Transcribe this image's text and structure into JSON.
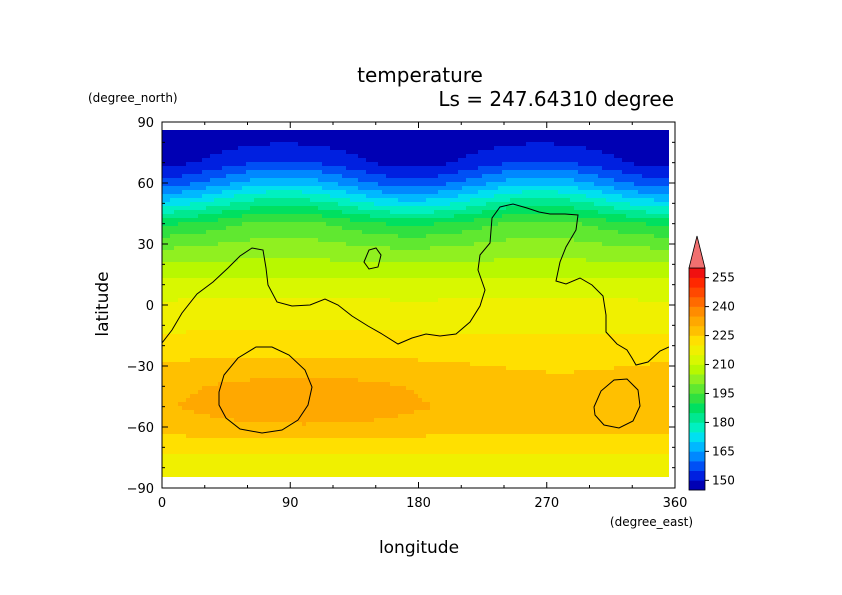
{
  "chart_data": {
    "type": "heatmap",
    "title": "temperature",
    "subtitle": "Ls = 247.64310 degree",
    "xlabel": "longitude",
    "ylabel": "latitude",
    "x_units": "(degree_east)",
    "y_units": "(degree_north)",
    "xlim": [
      0,
      360
    ],
    "ylim": [
      -90,
      90
    ],
    "xticks": [
      "0",
      "90",
      "180",
      "270",
      "360"
    ],
    "yticks": [
      "90",
      "60",
      "30",
      "0",
      "−30",
      "−60",
      "−90"
    ],
    "colorbar": {
      "levels": [
        145,
        150,
        155,
        160,
        165,
        170,
        175,
        180,
        185,
        190,
        195,
        200,
        205,
        210,
        215,
        220,
        225,
        230,
        235,
        240,
        245,
        250,
        255,
        260
      ],
      "tick_labels": [
        "150",
        "165",
        "180",
        "195",
        "210",
        "225",
        "240",
        "255"
      ],
      "tick_values": [
        150,
        165,
        180,
        195,
        210,
        225,
        240,
        255
      ],
      "colors": [
        "#0000b4",
        "#0020e0",
        "#0050f5",
        "#0088ff",
        "#00b8ff",
        "#00e0f0",
        "#00f0c0",
        "#00e890",
        "#00e060",
        "#30e040",
        "#60e830",
        "#90f020",
        "#b8f800",
        "#d8f800",
        "#f0f000",
        "#ffe000",
        "#ffc000",
        "#ffa800",
        "#ff8c00",
        "#ff6a00",
        "#ff4800",
        "#ff2800",
        "#f01010"
      ],
      "extend": "max",
      "over_color": "#f07070"
    },
    "zonal_profile": {
      "lat": [
        -90,
        -80,
        -70,
        -60,
        -50,
        -40,
        -30,
        -20,
        -10,
        0,
        10,
        20,
        30,
        40,
        50,
        60,
        70,
        80,
        90
      ],
      "temperature": [
        222,
        218,
        221,
        228,
        230,
        229,
        226,
        222,
        219,
        216,
        212,
        206,
        200,
        193,
        178,
        163,
        152,
        148,
        146
      ]
    },
    "contour_level": 220
  }
}
